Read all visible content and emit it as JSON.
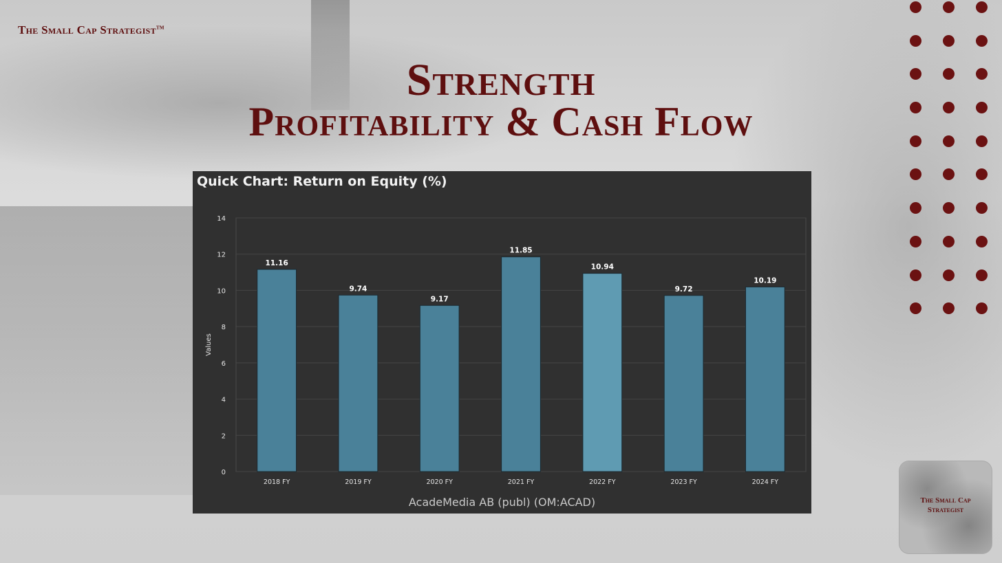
{
  "header": {
    "brand": "The Small Cap Strategist",
    "brand_mark": "TM",
    "title_line1": "Strength",
    "title_line2": "Profitability & Cash Flow"
  },
  "logo": {
    "line1": "The Small Cap",
    "line2": "Strategist"
  },
  "colors": {
    "accent": "#5e0f0f",
    "dot": "#6b1212",
    "chart_bg": "#303030",
    "bar": "#4a8199",
    "bar_highlight": "#5f9bb2"
  },
  "chart_data": {
    "type": "bar",
    "title": "Quick Chart: Return on Equity (%)",
    "categories": [
      "2018 FY",
      "2019 FY",
      "2020 FY",
      "2021 FY",
      "2022 FY",
      "2023 FY",
      "2024 FY"
    ],
    "values": [
      11.16,
      9.74,
      9.17,
      11.85,
      10.94,
      9.72,
      10.19
    ],
    "labels": [
      "11.16",
      "9.74",
      "9.17",
      "11.85",
      "10.94",
      "9.72",
      "10.19"
    ],
    "ylabel": "Values",
    "xlabel": "",
    "ylim": [
      0,
      14
    ],
    "yticks": [
      0,
      2,
      4,
      6,
      8,
      10,
      12,
      14
    ],
    "grid": true,
    "highlight_index": 4,
    "footnote": "AcadeMedia AB (publ) (OM:ACAD)"
  }
}
